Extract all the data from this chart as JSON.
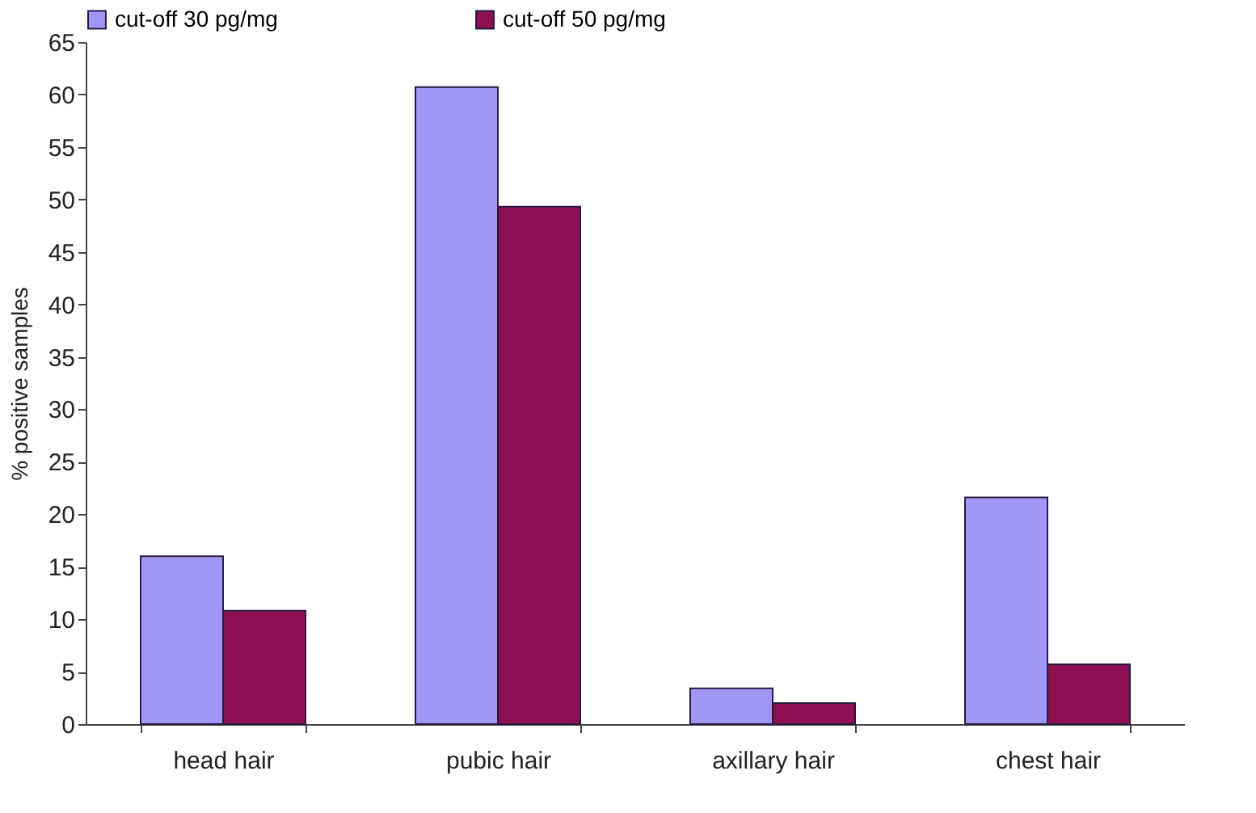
{
  "chart_data": {
    "type": "bar",
    "ylabel": "% positive samples",
    "categories": [
      "head hair",
      "pubic hair",
      "axillary hair",
      "chest hair"
    ],
    "series": [
      {
        "name": "cut-off 30 pg/mg",
        "color": "#a097f5",
        "values": [
          16.0,
          60.7,
          3.4,
          21.6
        ]
      },
      {
        "name": "cut-off 50 pg/mg",
        "color": "#8c1050",
        "values": [
          10.8,
          49.3,
          2.0,
          5.7
        ]
      }
    ],
    "ylim": [
      0,
      65
    ],
    "yticks": [
      0,
      5,
      10,
      15,
      20,
      25,
      30,
      35,
      40,
      45,
      50,
      55,
      60,
      65
    ],
    "grid": false,
    "legend": "top"
  }
}
